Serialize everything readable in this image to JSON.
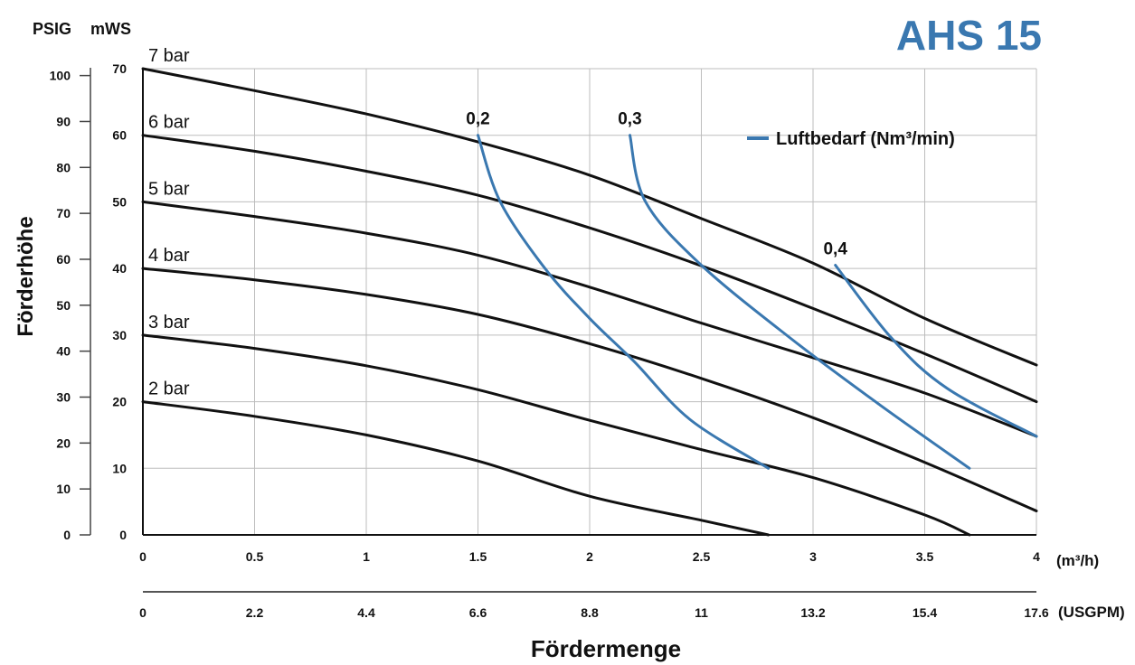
{
  "chart_data": {
    "type": "line",
    "title": "AHS 15",
    "xlabel": "Fördermenge",
    "ylabel": "Förderhöhe",
    "unit_psig": "PSIG",
    "unit_mws": "mWS",
    "x_unit_m3h": "(m³/h)",
    "x_unit_usgpm": "(USGPM)",
    "xlim": [
      0,
      4
    ],
    "ylim": [
      0,
      70
    ],
    "x_ticks_m3h": [
      "0",
      "0.5",
      "1",
      "1.5",
      "2",
      "2.5",
      "3",
      "3.5",
      "4"
    ],
    "x_ticks_usgpm": [
      "0",
      "2.2",
      "4.4",
      "6.6",
      "8.8",
      "11",
      "13.2",
      "15.4",
      "17.6"
    ],
    "y_ticks_mws": [
      "0",
      "10",
      "20",
      "30",
      "40",
      "50",
      "60",
      "70"
    ],
    "y_ticks_psig": [
      "0",
      "10",
      "20",
      "30",
      "40",
      "50",
      "60",
      "70",
      "80",
      "90",
      "100"
    ],
    "grid": true,
    "legend": {
      "placement": "top-right",
      "label": "Luftbedarf (Nm³/min)",
      "color": "#3a78b0"
    },
    "curve_color": "#111111",
    "air_color": "#3a78b0",
    "series": [
      {
        "name": "7 bar",
        "x": [
          0,
          0.5,
          1,
          1.5,
          2,
          2.5,
          3,
          3.5,
          4
        ],
        "y": [
          70,
          66.7,
          63.2,
          59,
          54,
          47.5,
          40.8,
          32.5,
          25.5
        ]
      },
      {
        "name": "6 bar",
        "x": [
          0,
          0.5,
          1,
          1.5,
          2,
          2.5,
          3,
          3.5,
          4
        ],
        "y": [
          60,
          57.6,
          54.6,
          51,
          46.1,
          40.4,
          34,
          27.2,
          20
        ]
      },
      {
        "name": "5 bar",
        "x": [
          0,
          0.5,
          1,
          1.5,
          2,
          2.5,
          3,
          3.5,
          4
        ],
        "y": [
          50,
          47.8,
          45.3,
          42,
          37.2,
          31.8,
          26.6,
          21.3,
          14.8
        ]
      },
      {
        "name": "4 bar",
        "x": [
          0,
          0.5,
          1,
          1.5,
          2,
          2.5,
          3,
          3.5,
          4
        ],
        "y": [
          40,
          38.3,
          36.1,
          33.1,
          28.7,
          23.5,
          17.6,
          10.9,
          3.6
        ]
      },
      {
        "name": "3 bar",
        "x": [
          0,
          0.5,
          1,
          1.5,
          2,
          2.5,
          3,
          3.5,
          3.7
        ],
        "y": [
          30,
          28,
          25.4,
          21.8,
          17.2,
          12.8,
          8.6,
          3,
          0
        ]
      },
      {
        "name": "2 bar",
        "x": [
          0,
          0.5,
          1,
          1.5,
          2,
          2.5,
          2.8
        ],
        "y": [
          20,
          17.8,
          15,
          11.1,
          5.8,
          2.2,
          0
        ]
      }
    ],
    "air_consumption": [
      {
        "name": "0,2",
        "x": [
          1.5,
          1.6,
          1.8,
          2,
          2.2,
          2.45,
          2.8
        ],
        "y": [
          60,
          50,
          40,
          32.5,
          26,
          17.3,
          10
        ]
      },
      {
        "name": "0,3",
        "x": [
          2.18,
          2.25,
          2.5,
          2.9,
          3.3,
          3.7
        ],
        "y": [
          60,
          50,
          40.5,
          29.5,
          19.5,
          10
        ]
      },
      {
        "name": "0,4",
        "x": [
          3.1,
          3.35,
          3.6,
          4
        ],
        "y": [
          40.5,
          29.6,
          22,
          14.8
        ]
      }
    ]
  }
}
